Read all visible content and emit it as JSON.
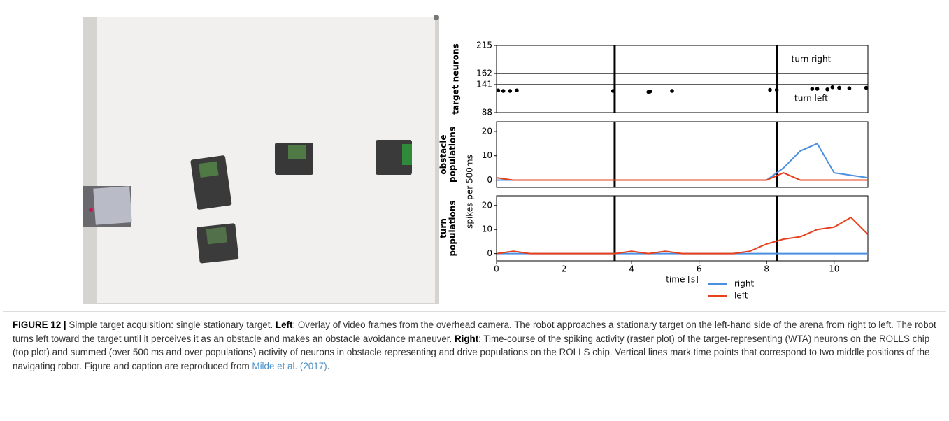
{
  "chart_data": [
    {
      "type": "scatter",
      "ylabel": "target neurons",
      "xlim": [
        0,
        11
      ],
      "ylim": [
        88,
        215
      ],
      "yticks": [
        88,
        141,
        162,
        215
      ],
      "hlines": [
        141,
        162
      ],
      "vlines": [
        3.5,
        8.3
      ],
      "annotations": [
        "turn right",
        "turn left"
      ],
      "color": "#000000",
      "x": [
        0.05,
        0.2,
        0.4,
        0.6,
        3.45,
        4.5,
        4.55,
        5.2,
        8.1,
        8.3,
        9.35,
        9.5,
        9.8,
        9.95,
        10.15,
        10.45,
        10.95
      ],
      "y": [
        130,
        129,
        129,
        130,
        129,
        127,
        128,
        129,
        131,
        131,
        133,
        133,
        132,
        136,
        135,
        134,
        135
      ]
    },
    {
      "type": "line",
      "ylabel": "obstacle populations",
      "xlim": [
        0,
        11
      ],
      "ylim": [
        -3,
        24
      ],
      "yticks": [
        0,
        10,
        20
      ],
      "vlines": [
        3.5,
        8.3
      ],
      "x": [
        0,
        0.5,
        1,
        1.5,
        2,
        2.5,
        3,
        3.5,
        4,
        4.5,
        5,
        5.5,
        6,
        6.5,
        7,
        7.5,
        8,
        8.5,
        9,
        9.5,
        10,
        10.5,
        11
      ],
      "series": [
        {
          "name": "right",
          "color": "#4a8fe0",
          "values": [
            0,
            0,
            0,
            0,
            0,
            0,
            0,
            0,
            0,
            0,
            0,
            0,
            0,
            0,
            0,
            0,
            0,
            5,
            12,
            15,
            3,
            2,
            1
          ]
        },
        {
          "name": "left",
          "color": "#e8401c",
          "values": [
            1,
            0,
            0,
            0,
            0,
            0,
            0,
            0,
            0,
            0,
            0,
            0,
            0,
            0,
            0,
            0,
            0,
            3,
            0,
            0,
            0,
            0,
            0
          ]
        }
      ]
    },
    {
      "type": "line",
      "ylabel": "turn populations",
      "xlabel": "time [s]",
      "xlim": [
        0,
        11
      ],
      "xticks": [
        0,
        2,
        4,
        6,
        8,
        10
      ],
      "ylim": [
        -3,
        24
      ],
      "yticks": [
        0,
        10,
        20
      ],
      "vlines": [
        3.5,
        8.3
      ],
      "legend": "lower right",
      "x": [
        0,
        0.5,
        1,
        1.5,
        2,
        2.5,
        3,
        3.5,
        4,
        4.5,
        5,
        5.5,
        6,
        6.5,
        7,
        7.5,
        8,
        8.5,
        9,
        9.5,
        10,
        10.5,
        11
      ],
      "series": [
        {
          "name": "right",
          "color": "#4a8fe0",
          "values": [
            0,
            0,
            0,
            0,
            0,
            0,
            0,
            0,
            0,
            0,
            0,
            0,
            0,
            0,
            0,
            0,
            0,
            0,
            0,
            0,
            0,
            0,
            0
          ]
        },
        {
          "name": "left",
          "color": "#e8401c",
          "values": [
            0,
            1,
            0,
            0,
            0,
            0,
            0,
            0,
            1,
            0,
            1,
            0,
            0,
            0,
            0,
            1,
            4,
            6,
            7,
            10,
            11,
            15,
            8
          ]
        }
      ]
    }
  ],
  "shared_ylabel": "spikes per 500ms",
  "caption": {
    "label": "FIGURE 12 |",
    "title": " Simple target acquisition: single stationary target. ",
    "left_label": "Left",
    "left_text": ": Overlay of video frames from the overhead camera. The robot approaches a stationary target on the left-hand side of the arena from right to left. The robot turns left toward the target until it perceives it as an obstacle and makes an obstacle avoidance maneuver. ",
    "right_label": "Right",
    "right_text": ": Time-course of the spiking activity (raster plot) of the target-representing (WTA) neurons on the ROLLS chip (top plot) and summed (over 500 ms and over populations) activity of neurons in obstacle representing and drive populations on the ROLLS chip. Vertical lines mark time points that correspond to two middle positions of the navigating robot. Figure and caption are reproduced from ",
    "cite": "Milde et al. (2017)",
    "end": "."
  }
}
